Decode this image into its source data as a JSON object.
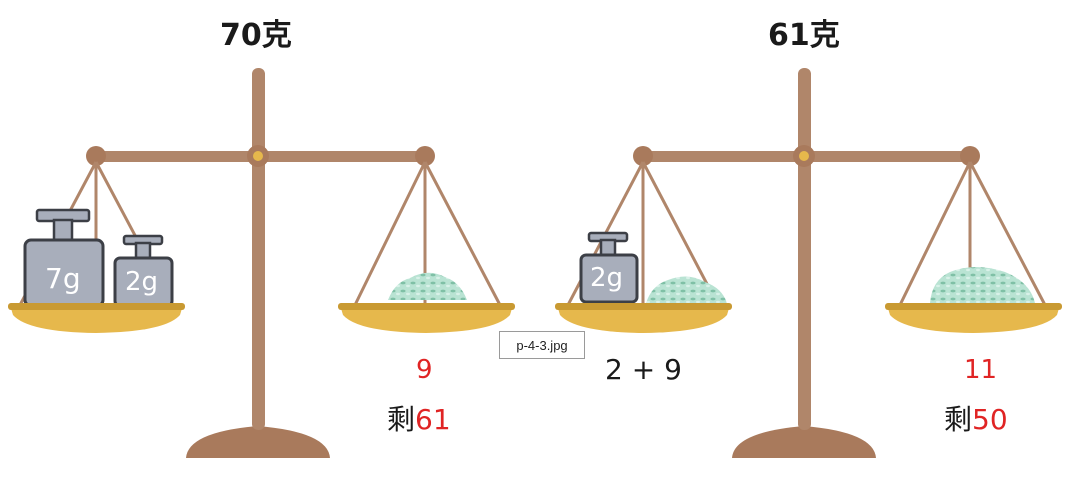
{
  "colors": {
    "beam": "#b0866a",
    "base": "#a97a5c",
    "pan": "#e6b84c",
    "pan_dark": "#c99a32",
    "weight": "#a8aebb",
    "weight_dark": "#3c3f46",
    "powder": "#a9dcc8",
    "red_text": "#e02424"
  },
  "scales": [
    {
      "title": "70克",
      "left_pan": [
        "7g",
        "2g"
      ],
      "right_pan": "powder",
      "value": "9",
      "remaining_prefix": "剩",
      "remaining_value": "61"
    },
    {
      "title": "61克",
      "left_pan": [
        "2g",
        "powder"
      ],
      "right_pan": "powder",
      "expression": "2 + 9",
      "value": "11",
      "remaining_prefix": "剩",
      "remaining_value": "50"
    }
  ],
  "tooltip": "p-4-3.jpg"
}
